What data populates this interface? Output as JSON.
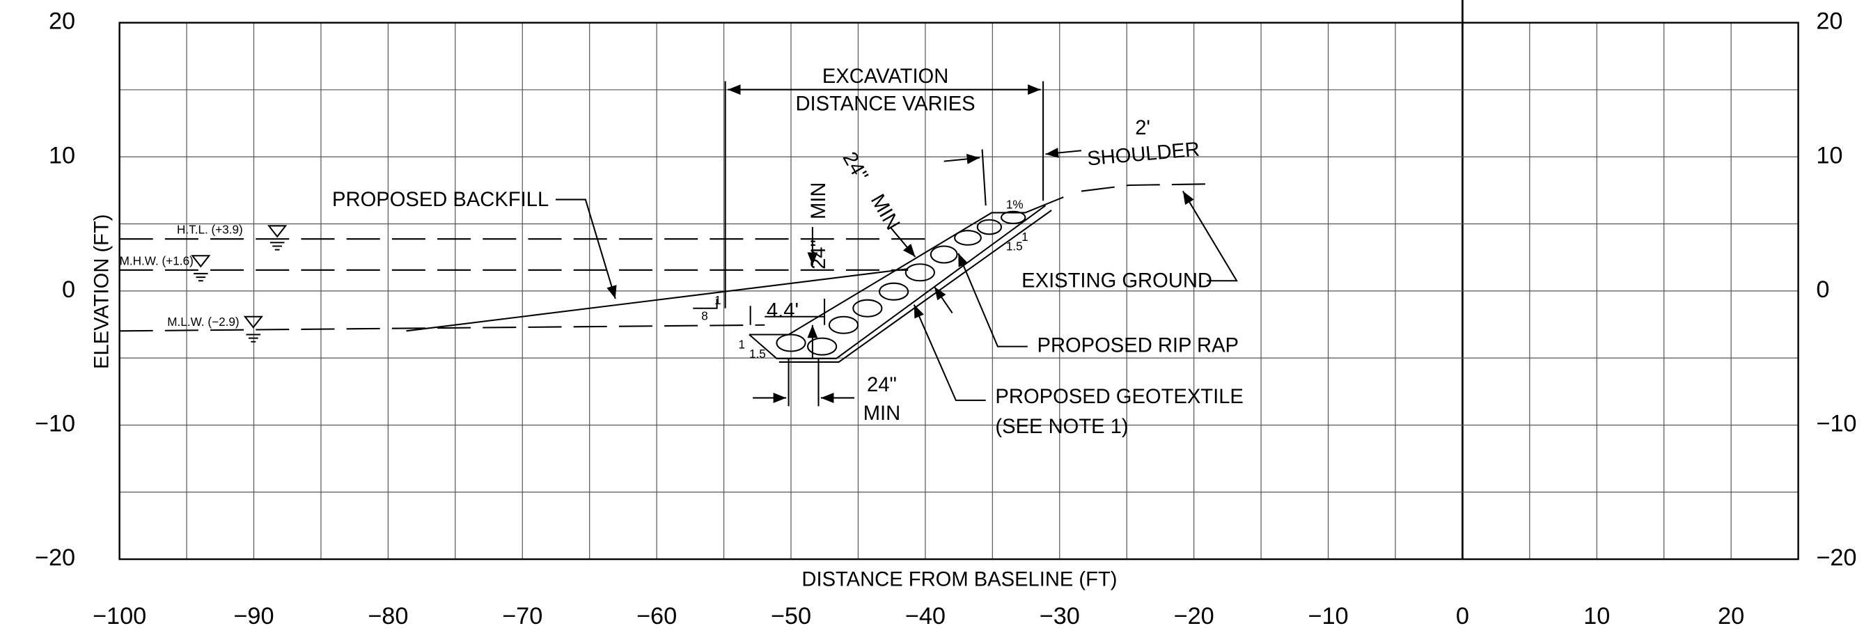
{
  "axes": {
    "x_label": "DISTANCE FROM BASELINE (FT)",
    "y_label": "ELEVATION (FT)",
    "xlim": [
      -100,
      25
    ],
    "ylim": [
      -20,
      20
    ],
    "xticks": [
      {
        "value": -100,
        "label": "−100"
      },
      {
        "value": -90,
        "label": "−90"
      },
      {
        "value": -80,
        "label": "−80"
      },
      {
        "value": -70,
        "label": "−70"
      },
      {
        "value": -60,
        "label": "−60"
      },
      {
        "value": -50,
        "label": "−50"
      },
      {
        "value": -40,
        "label": "−40"
      },
      {
        "value": -30,
        "label": "−30"
      },
      {
        "value": -20,
        "label": "−20"
      },
      {
        "value": -10,
        "label": "−10"
      },
      0,
      10,
      20
    ],
    "yticks": [
      {
        "value": -20,
        "label": "−20"
      },
      {
        "value": -10,
        "label": "−10"
      },
      0,
      10,
      20
    ],
    "grid": true
  },
  "annotations": {
    "excavation": [
      "EXCAVATION",
      "DISTANCE VARIES"
    ],
    "shoulder": [
      "2'",
      "SHOULDER"
    ],
    "diagonal_min": [
      "24\"",
      "MIN"
    ],
    "vertical_min": [
      "24\"",
      "MIN"
    ],
    "bottom_min": [
      "24\"",
      "MIN"
    ],
    "backfill": "PROPOSED BACKFILL",
    "htl": "H.T.L. (+3.9)",
    "mhw": "M.H.W. (+1.6)",
    "mlw": "M.L.W. (−2.9)",
    "existing_ground": "EXISTING GROUND",
    "rip_rap": "PROPOSED RIP RAP",
    "geotextile": [
      "PROPOSED GEOTEXTILE",
      "(SEE NOTE 1)"
    ],
    "bench_width": "4.4'",
    "slope_backfill": [
      "1",
      "8"
    ],
    "slope_toe": [
      "1",
      "1.5"
    ],
    "slope_top": [
      "1",
      "1.5"
    ],
    "crown_slope": "1%"
  }
}
